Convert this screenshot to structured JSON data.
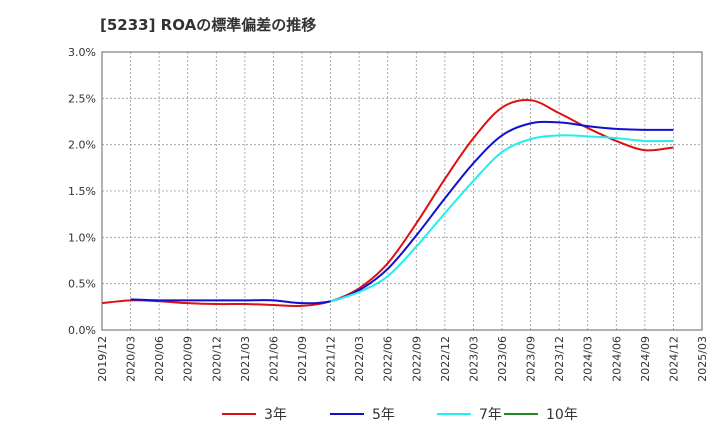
{
  "chart_data": {
    "type": "line",
    "title": "[5233]  ROAの標準偏差の推移",
    "xlabel": "",
    "ylabel": "",
    "ylim": [
      0,
      3.0
    ],
    "yticks": [
      "0.0%",
      "0.5%",
      "1.0%",
      "1.5%",
      "2.0%",
      "2.5%",
      "3.0%"
    ],
    "x": [
      "2019/12",
      "2020/03",
      "2020/06",
      "2020/09",
      "2020/12",
      "2021/03",
      "2021/06",
      "2021/09",
      "2021/12",
      "2022/03",
      "2022/06",
      "2022/09",
      "2022/12",
      "2023/03",
      "2023/06",
      "2023/09",
      "2023/12",
      "2024/03",
      "2024/06",
      "2024/09",
      "2024/12",
      "2025/03"
    ],
    "grid": true,
    "legend_position": "bottom",
    "series": [
      {
        "name": "3年",
        "color": "#dd1111",
        "values": [
          0.29,
          0.32,
          0.31,
          0.29,
          0.28,
          0.28,
          0.27,
          0.26,
          0.31,
          0.45,
          0.72,
          1.15,
          1.63,
          2.07,
          2.4,
          2.48,
          2.34,
          2.18,
          2.04,
          1.94,
          1.97,
          null
        ]
      },
      {
        "name": "5年",
        "color": "#1111cc",
        "values": [
          null,
          0.33,
          0.32,
          0.32,
          0.32,
          0.32,
          0.32,
          0.29,
          0.31,
          0.43,
          0.66,
          1.02,
          1.42,
          1.8,
          2.1,
          2.23,
          2.24,
          2.2,
          2.17,
          2.16,
          2.16,
          null
        ]
      },
      {
        "name": "7年",
        "color": "#22eeee",
        "values": [
          null,
          null,
          null,
          null,
          null,
          null,
          null,
          null,
          0.31,
          0.41,
          0.58,
          0.9,
          1.26,
          1.61,
          1.92,
          2.06,
          2.1,
          2.09,
          2.07,
          2.04,
          2.04,
          null
        ]
      },
      {
        "name": "10年",
        "color": "#228822",
        "values": [
          null,
          null,
          null,
          null,
          null,
          null,
          null,
          null,
          null,
          null,
          null,
          null,
          null,
          null,
          null,
          null,
          null,
          null,
          null,
          null,
          null,
          null
        ]
      }
    ]
  }
}
